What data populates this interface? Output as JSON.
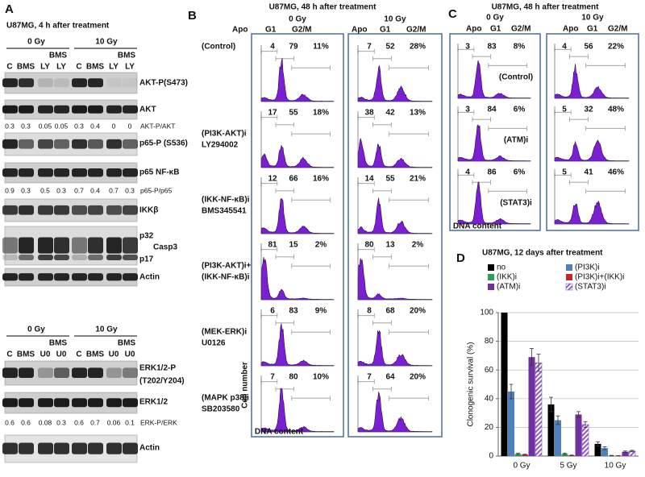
{
  "panel_a": {
    "letter": "A",
    "title": "U87MG, 4 h after treatment",
    "blot1": {
      "doses": [
        "0 Gy",
        "10 Gy"
      ],
      "combo_labels": [
        "BMS",
        "BMS"
      ],
      "lanes": [
        "C",
        "BMS",
        "LY",
        "LY",
        "C",
        "BMS",
        "LY",
        "LY"
      ],
      "akt_p": "AKT-P(S473)",
      "akt": "AKT",
      "akt_ratio": {
        "values": [
          "0.3",
          "0.3",
          "0.05",
          "0.05",
          "0.3",
          "0.4",
          "0",
          "0"
        ],
        "label": "AKT-P/AKT"
      },
      "p65_p": "p65-P (S536)",
      "p65": "p65 NF-κB",
      "p65_ratio": {
        "values": [
          "0.9",
          "0.3",
          "0.5",
          "0.3",
          "0.7",
          "0.4",
          "0.7",
          "0.3"
        ],
        "label": "p65-P/p65"
      },
      "ikk": "IKKβ",
      "p32": "p32",
      "casp3": "Casp3",
      "p17": "p17",
      "actin": "Actin"
    },
    "blot2": {
      "doses": [
        "0 Gy",
        "10 Gy"
      ],
      "combo_labels": [
        "BMS",
        "BMS"
      ],
      "lanes": [
        "C",
        "BMS",
        "U0",
        "U0",
        "C",
        "BMS",
        "U0",
        "U0"
      ],
      "erk_p": [
        "ERK1/2-P",
        "(T202/Y204)"
      ],
      "erk": "ERK1/2",
      "erk_ratio": {
        "values": [
          "0.6",
          "0.6",
          "0.08",
          "0.3",
          "0.6",
          "0.7",
          "0.06",
          "0.1"
        ],
        "label": "ERK-P/ERK"
      },
      "actin": "Actin"
    }
  },
  "panel_b": {
    "letter": "B",
    "title": "U87MG, 48 h after treatment",
    "doses": [
      "0 Gy",
      "10 Gy"
    ],
    "phases": [
      "Apo",
      "G1",
      "G2/M"
    ],
    "rows": [
      {
        "label": [
          "(Control)"
        ],
        "dose_values": [
          [
            "4",
            "79",
            "11%"
          ],
          [
            "7",
            "52",
            "28%"
          ]
        ]
      },
      {
        "label": [
          "(PI3K-AKT)i",
          "LY294002"
        ],
        "dose_values": [
          [
            "17",
            "55",
            "18%"
          ],
          [
            "38",
            "42",
            "13%"
          ]
        ]
      },
      {
        "label": [
          "(IKK-NF-κB)i",
          "BMS345541"
        ],
        "dose_values": [
          [
            "12",
            "66",
            "16%"
          ],
          [
            "14",
            "55",
            "21%"
          ]
        ]
      },
      {
        "label": [
          "(PI3K-AKT)i+",
          "(IKK-NF-κB)i"
        ],
        "dose_values": [
          [
            "81",
            "15",
            "2%"
          ],
          [
            "80",
            "13",
            "2%"
          ]
        ]
      },
      {
        "label": [
          "(MEK-ERK)i",
          "U0126"
        ],
        "dose_values": [
          [
            "6",
            "83",
            "9%"
          ],
          [
            "8",
            "68",
            "20%"
          ]
        ]
      },
      {
        "label": [
          "(MAPK p38)i",
          "SB203580"
        ],
        "dose_values": [
          [
            "7",
            "80",
            "10%"
          ],
          [
            "7",
            "64",
            "20%"
          ]
        ]
      }
    ],
    "y_label": "Cell number",
    "x_label": "DNA content"
  },
  "panel_c": {
    "letter": "C",
    "title": "U87MG, 48 h after treatment",
    "doses": [
      "0 Gy",
      "10 Gy"
    ],
    "phases": [
      "Apo",
      "G1",
      "G2/M"
    ],
    "rows": [
      {
        "label": "(Control)",
        "dose_values": [
          [
            "3",
            "83",
            "8%"
          ],
          [
            "4",
            "56",
            "22%"
          ]
        ]
      },
      {
        "label": "(ATM)i",
        "dose_values": [
          [
            "3",
            "84",
            "6%"
          ],
          [
            "5",
            "32",
            "48%"
          ]
        ]
      },
      {
        "label": "(STAT3)i",
        "dose_values": [
          [
            "4",
            "86",
            "6%"
          ],
          [
            "5",
            "41",
            "46%"
          ]
        ]
      }
    ],
    "x_label": "DNA content"
  },
  "chart_data": {
    "type": "bar",
    "letter": "D",
    "title": "U87MG, 12 days after treatment",
    "y_label": "Clonogenic survival (%)",
    "categories": [
      "0 Gy",
      "5 Gy",
      "10 Gy"
    ],
    "series": [
      {
        "name": "no",
        "color": "#000000",
        "values": [
          100,
          36,
          8.5
        ],
        "errors": [
          null,
          5,
          1.5
        ]
      },
      {
        "name": "(PI3K)i",
        "color": "#4f81bd",
        "values": [
          45,
          25,
          5.5
        ],
        "errors": [
          5,
          3,
          1
        ]
      },
      {
        "name": "(IKK)i",
        "color": "#2ca05a",
        "values": [
          1.5,
          1.5,
          0.3
        ],
        "errors": [
          0.5,
          0.5,
          0.2
        ]
      },
      {
        "name": "(PI3K)i+(IKK)i",
        "color": "#c0282d",
        "values": [
          1,
          0.5,
          0.2
        ],
        "errors": [
          0.3,
          0.2,
          0.1
        ]
      },
      {
        "name": "(ATM)i",
        "color": "#7030a0",
        "values": [
          69,
          29,
          3
        ],
        "errors": [
          6,
          2,
          0.5
        ]
      },
      {
        "name": "(STAT3)i",
        "color": "#8e5cc4",
        "pattern": "hatch",
        "values": [
          65,
          22,
          3.5
        ],
        "errors": [
          6,
          2,
          0.5
        ]
      }
    ],
    "ylim": [
      0,
      100
    ],
    "yticks": [
      0,
      20,
      40,
      60,
      80,
      100
    ],
    "grid": true,
    "legend": "top"
  }
}
